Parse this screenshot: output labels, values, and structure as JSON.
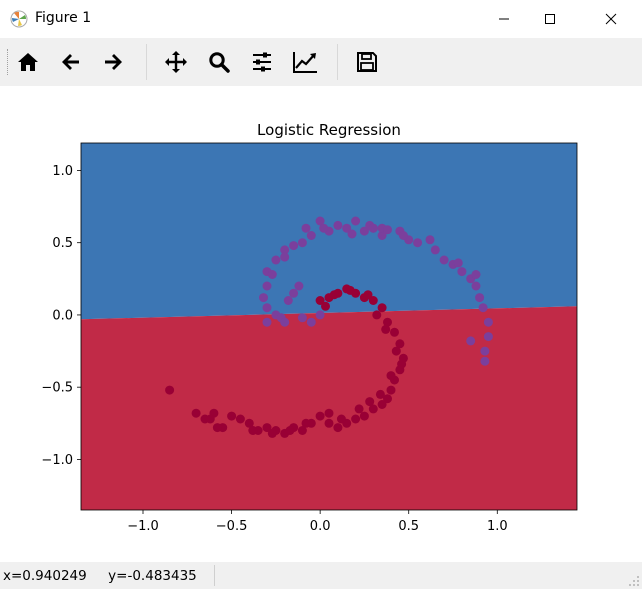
{
  "window": {
    "title": "Figure 1"
  },
  "toolbar": {
    "buttons": [
      {
        "icon": "home-icon"
      },
      {
        "icon": "back-arrow-icon"
      },
      {
        "icon": "forward-arrow-icon"
      },
      {
        "icon": "pan-icon"
      },
      {
        "icon": "zoom-icon"
      },
      {
        "icon": "subplots-config-icon"
      },
      {
        "icon": "edit-axis-icon"
      },
      {
        "icon": "save-icon"
      }
    ]
  },
  "status": {
    "coords": "x=0.940249     y=-0.483435"
  },
  "chart_data": {
    "type": "scatter",
    "title": "Logistic Regression",
    "xlabel": "",
    "ylabel": "",
    "xlim": [
      -1.35,
      1.45
    ],
    "ylim": [
      -1.35,
      1.19
    ],
    "xticks": [
      -1.0,
      -0.5,
      0.0,
      0.5,
      1.0
    ],
    "xtick_labels": [
      "−1.0",
      "−0.5",
      "0.0",
      "0.5",
      "1.0"
    ],
    "yticks": [
      -1.0,
      -0.5,
      0.0,
      0.5,
      1.0
    ],
    "ytick_labels": [
      "−1.0",
      "−0.5",
      "0.0",
      "0.5",
      "1.0"
    ],
    "grid": false,
    "decision_boundary": {
      "left": [
        -1.35,
        -0.03
      ],
      "right": [
        1.45,
        0.06
      ]
    },
    "colors": {
      "region_upper": "#3c76b4",
      "region_lower": "#c12a47",
      "class_0": "#7b3f9c",
      "class_1": "#990035"
    },
    "series": [
      {
        "class": 0,
        "x": [
          0.0,
          0.05,
          0.1,
          0.15,
          0.2,
          0.25,
          0.3,
          0.35,
          0.45,
          0.5,
          -0.05,
          -0.1,
          -0.15,
          -0.2,
          -0.25,
          -0.3,
          0.55,
          0.65,
          0.7,
          0.75,
          0.8,
          0.85,
          0.88,
          0.9,
          0.92,
          0.95,
          0.95,
          0.93,
          -0.3,
          -0.32,
          -0.3,
          -0.25,
          -0.22,
          -0.2,
          -0.18,
          -0.15,
          -0.1,
          -0.05,
          0.0,
          -0.12,
          0.18,
          0.28,
          0.35,
          0.47,
          -0.2,
          -0.08,
          0.62,
          0.78,
          0.88,
          -0.27,
          -0.3,
          0.02,
          0.3,
          0.85,
          0.93,
          0.38
        ],
        "y": [
          0.65,
          0.58,
          0.62,
          0.6,
          0.65,
          0.58,
          0.6,
          0.55,
          0.58,
          0.52,
          0.55,
          0.5,
          0.48,
          0.45,
          0.38,
          0.3,
          0.5,
          0.45,
          0.38,
          0.35,
          0.3,
          0.25,
          0.2,
          0.12,
          0.05,
          -0.05,
          -0.15,
          -0.25,
          0.2,
          0.12,
          0.05,
          0.0,
          -0.02,
          -0.05,
          0.1,
          0.15,
          -0.02,
          -0.05,
          0.0,
          0.2,
          0.56,
          0.62,
          0.6,
          0.55,
          0.4,
          0.6,
          0.52,
          0.36,
          0.28,
          0.28,
          -0.05,
          0.6,
          0.6,
          -0.18,
          -0.32,
          0.59
        ]
      },
      {
        "class": 1,
        "x": [
          0.0,
          0.05,
          0.1,
          0.15,
          0.2,
          0.25,
          0.3,
          0.35,
          0.38,
          0.42,
          0.45,
          0.47,
          0.45,
          0.42,
          0.4,
          0.38,
          0.35,
          0.3,
          0.25,
          0.2,
          0.15,
          0.1,
          0.05,
          0.0,
          -0.05,
          -0.1,
          -0.15,
          -0.2,
          -0.25,
          -0.3,
          -0.35,
          -0.4,
          -0.45,
          -0.5,
          -0.55,
          -0.6,
          -0.65,
          -0.7,
          -0.85,
          0.32,
          0.37,
          0.43,
          0.22,
          0.12,
          0.05,
          -0.08,
          -0.17,
          -0.27,
          -0.38,
          -0.62,
          -0.58,
          0.28,
          0.34,
          0.08,
          0.17,
          0.27,
          0.4,
          0.46,
          0.03
        ],
        "y": [
          0.1,
          0.12,
          0.15,
          0.18,
          0.15,
          0.12,
          0.1,
          0.05,
          -0.05,
          -0.12,
          -0.2,
          -0.3,
          -0.38,
          -0.45,
          -0.52,
          -0.58,
          -0.62,
          -0.65,
          -0.7,
          -0.72,
          -0.75,
          -0.78,
          -0.68,
          -0.7,
          -0.75,
          -0.8,
          -0.78,
          -0.82,
          -0.8,
          -0.78,
          -0.8,
          -0.75,
          -0.72,
          -0.7,
          -0.78,
          -0.68,
          -0.72,
          -0.68,
          -0.52,
          0.0,
          -0.1,
          -0.25,
          -0.65,
          -0.72,
          -0.75,
          -0.75,
          -0.8,
          -0.82,
          -0.8,
          -0.72,
          -0.78,
          -0.6,
          -0.55,
          0.14,
          0.17,
          0.14,
          -0.42,
          -0.34,
          0.06
        ]
      }
    ]
  }
}
